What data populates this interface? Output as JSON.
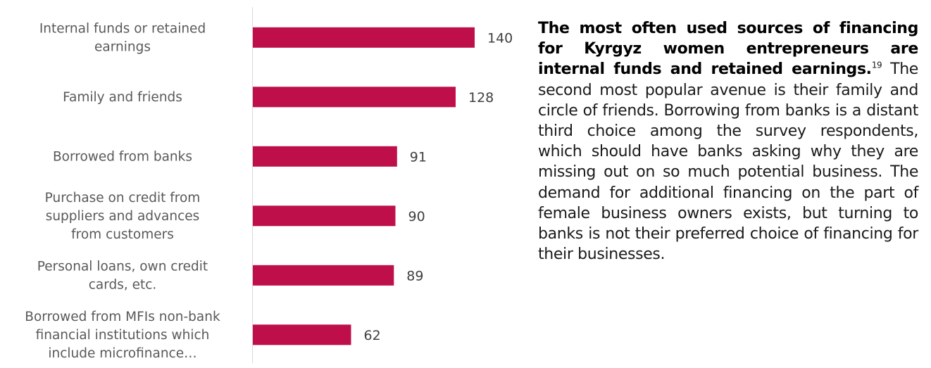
{
  "chart_data": {
    "type": "bar",
    "orientation": "horizontal",
    "categories": [
      [
        "Internal funds or retained",
        "earnings"
      ],
      [
        "Family and  friends"
      ],
      [
        "Borrowed from banks"
      ],
      [
        "Purchase on credit from",
        "suppliers and advances",
        "from customers"
      ],
      [
        "Personal loans, own credit",
        "cards, etc."
      ],
      [
        "Borrowed from MFIs non-bank",
        "financial institutions which",
        "include microfinance…"
      ]
    ],
    "values": [
      140,
      128,
      91,
      90,
      89,
      62
    ],
    "xlim": [
      0,
      150
    ],
    "bar_color": "#BE0F4B",
    "grid": false,
    "data_labels": true
  },
  "text": {
    "lead_bold": "The most often used sources of financing for Kyrgyz women entrepreneurs are internal funds and retained earnings.",
    "footnote": "19",
    "body": " The second most popular avenue is their family and circle of friends. Borrowing from banks is a distant third choice among the survey respondents, which should have banks asking why they are missing out on so much potential business. The demand for additional financing on the part of female business owners exists, but turning to banks is not their preferred choice of financing for their businesses."
  }
}
